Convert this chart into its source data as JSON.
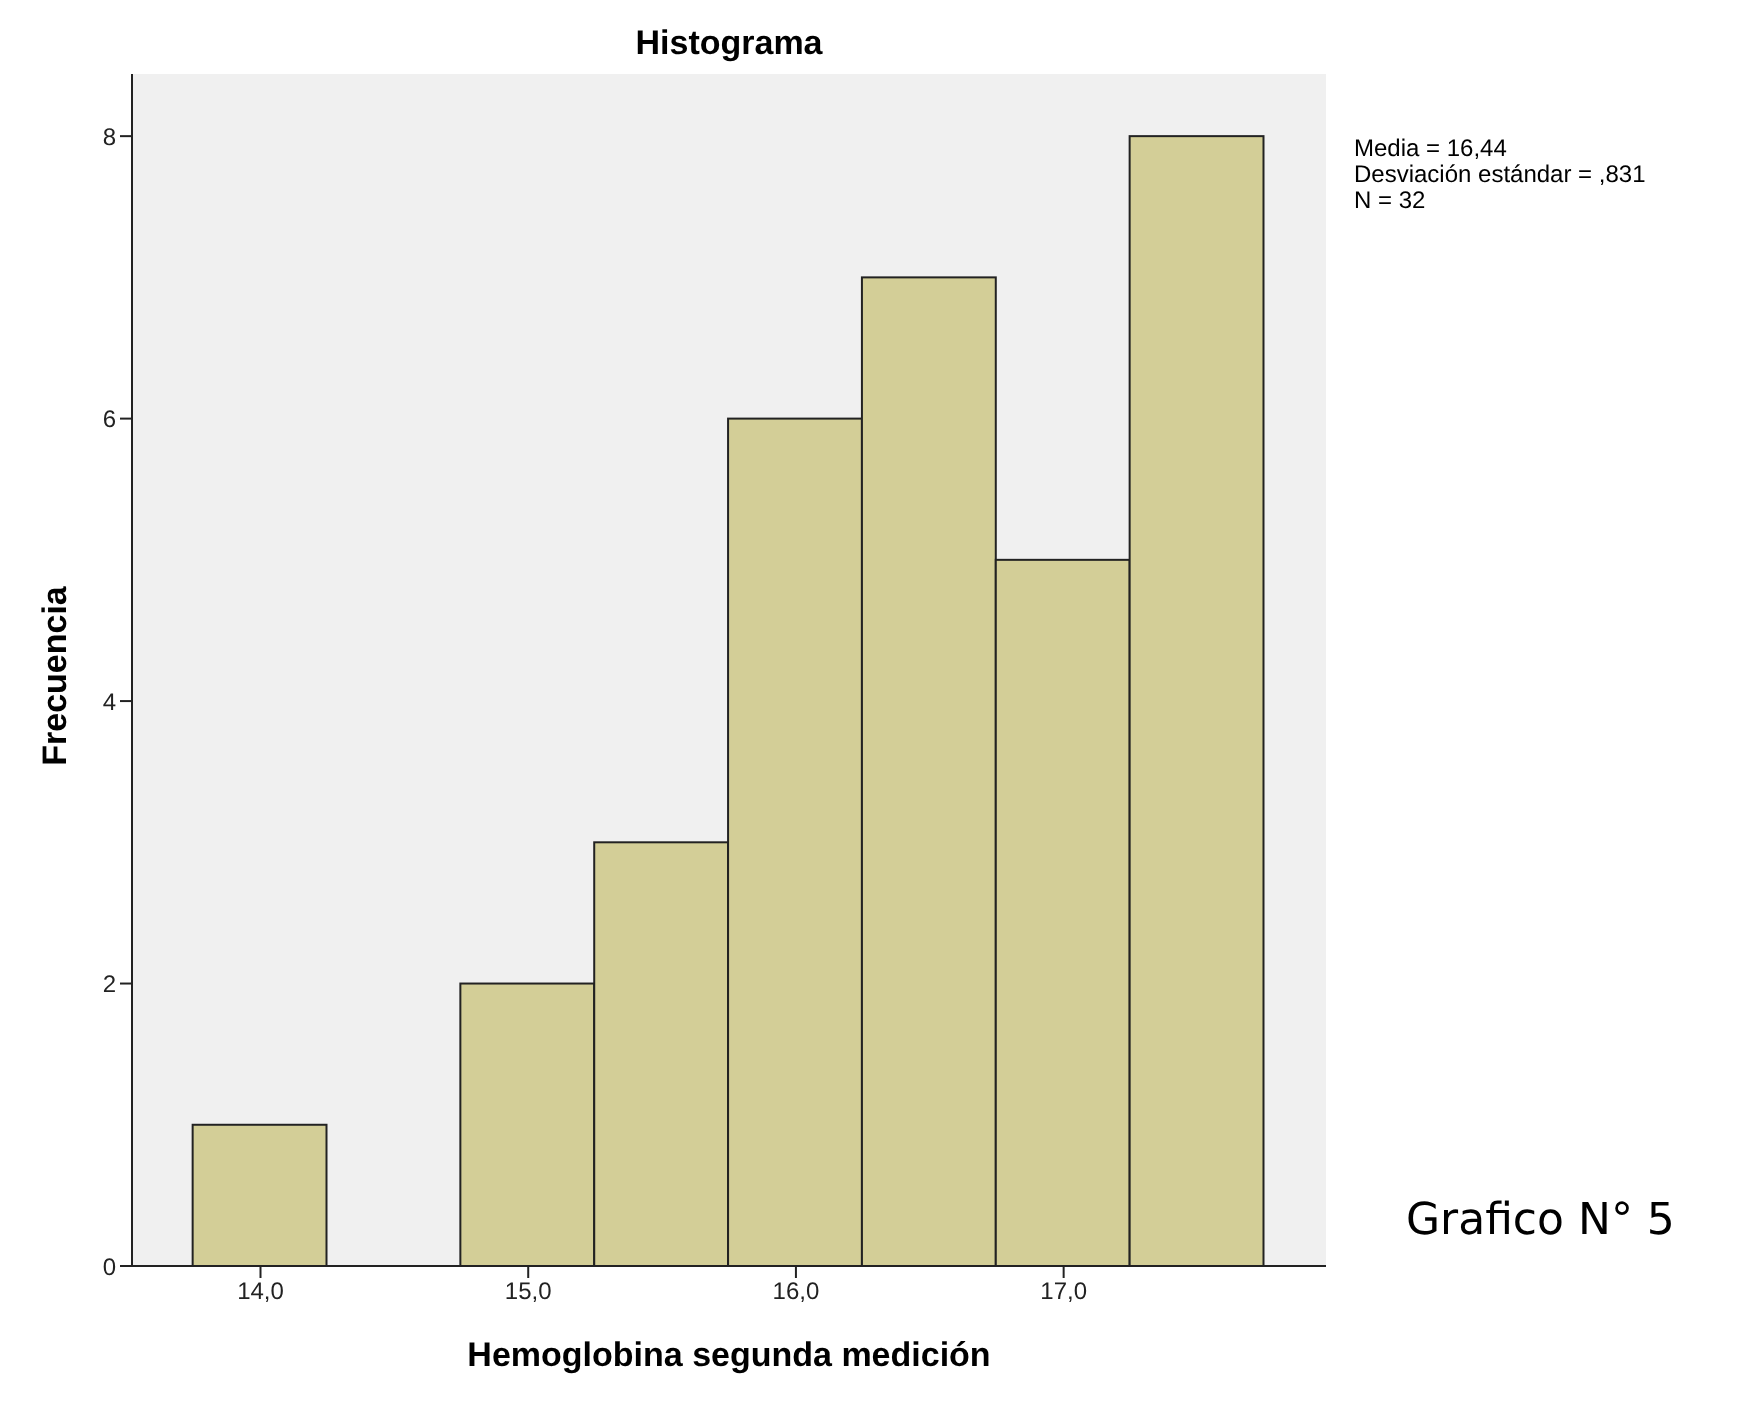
{
  "chart_data": {
    "type": "histogram",
    "title": "Histograma",
    "xlabel": "Hemoglobina segunda medición",
    "ylabel": "Frecuencia",
    "bins": [
      13.75,
      14.25,
      14.75,
      15.25,
      15.75,
      16.25,
      16.75,
      17.25,
      17.75
    ],
    "values": [
      1,
      0,
      2,
      3,
      6,
      7,
      5,
      8
    ],
    "color": "#d3ce97",
    "xlim": [
      13.52,
      17.98
    ],
    "xticks": [
      {
        "value": 14,
        "label": "14,0"
      },
      {
        "value": 15,
        "label": "15,0"
      },
      {
        "value": 16,
        "label": "16,0"
      },
      {
        "value": 17,
        "label": "17,0"
      }
    ],
    "ylim": [
      0,
      8.44
    ],
    "yticks": [
      0,
      2,
      4,
      6,
      8
    ],
    "grid": false,
    "annotations": [
      "Media = 16,44",
      "Desviación estándar = ,831",
      "N = 32",
      "Grafico N° 5"
    ]
  }
}
